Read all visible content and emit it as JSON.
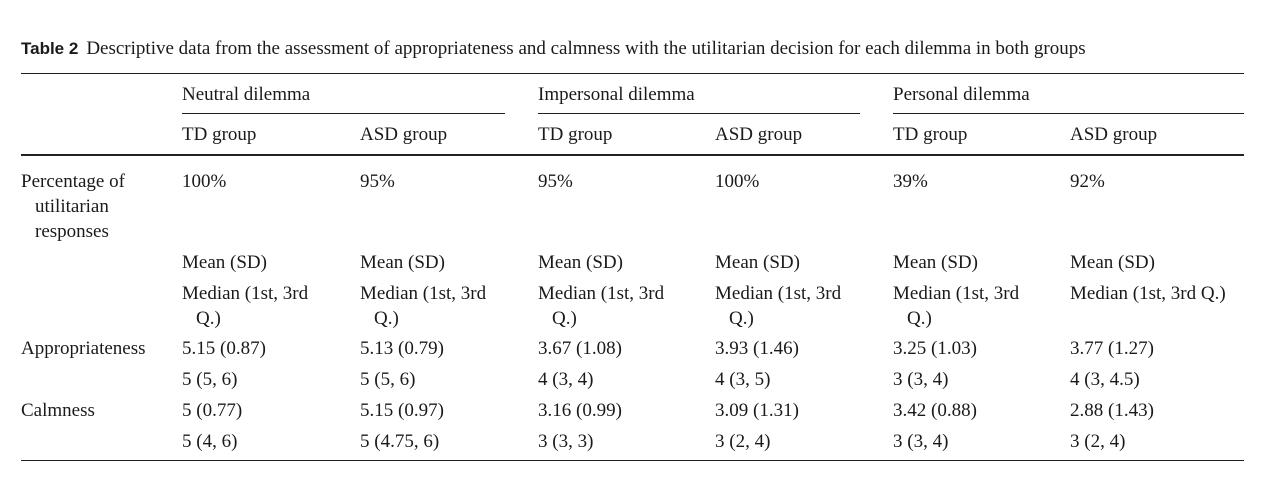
{
  "caption": {
    "label": "Table 2",
    "text": "Descriptive data from the assessment of appropriateness and calmness with the utilitarian decision for each dilemma in both groups"
  },
  "headers": {
    "dilemmas": [
      "Neutral dilemma",
      "Impersonal dilemma",
      "Personal dilemma"
    ],
    "groups": [
      "TD group",
      "ASD group",
      "TD group",
      "ASD group",
      "TD group",
      "ASD group"
    ]
  },
  "percentage_row": {
    "label_line1": "Percentage of",
    "label_line2": "utilitarian",
    "label_line3": "responses",
    "values": [
      "100%",
      "95%",
      "95%",
      "100%",
      "39%",
      "92%"
    ]
  },
  "stats_row": {
    "mean_sd": [
      "Mean (SD)",
      "Mean (SD)",
      "Mean (SD)",
      "Mean (SD)",
      "Mean (SD)",
      "Mean (SD)"
    ],
    "median_line1": [
      "Median (1st, 3rd",
      "Median (1st, 3rd",
      "Median (1st, 3rd",
      "Median (1st, 3rd",
      "Median (1st, 3rd",
      "Median (1st, 3rd Q.)"
    ],
    "median_line2": [
      "Q.)",
      "Q.)",
      "Q.)",
      "Q.)",
      "Q.)",
      ""
    ]
  },
  "appropriateness": {
    "label": "Appropriateness",
    "mean": [
      "5.15 (0.87)",
      "5.13 (0.79)",
      "3.67 (1.08)",
      "3.93 (1.46)",
      "3.25 (1.03)",
      "3.77 (1.27)"
    ],
    "median": [
      "5 (5, 6)",
      "5 (5, 6)",
      "4 (3, 4)",
      "4 (3, 5)",
      "3 (3, 4)",
      "4 (3, 4.5)"
    ]
  },
  "calmness": {
    "label": "Calmness",
    "mean": [
      "5 (0.77)",
      "5.15 (0.97)",
      "3.16 (0.99)",
      "3.09 (1.31)",
      "3.42 (0.88)",
      "2.88 (1.43)"
    ],
    "median": [
      "5 (4, 6)",
      "5 (4.75, 6)",
      "3 (3, 3)",
      "3 (2, 4)",
      "3 (3, 4)",
      "3 (2, 4)"
    ]
  }
}
